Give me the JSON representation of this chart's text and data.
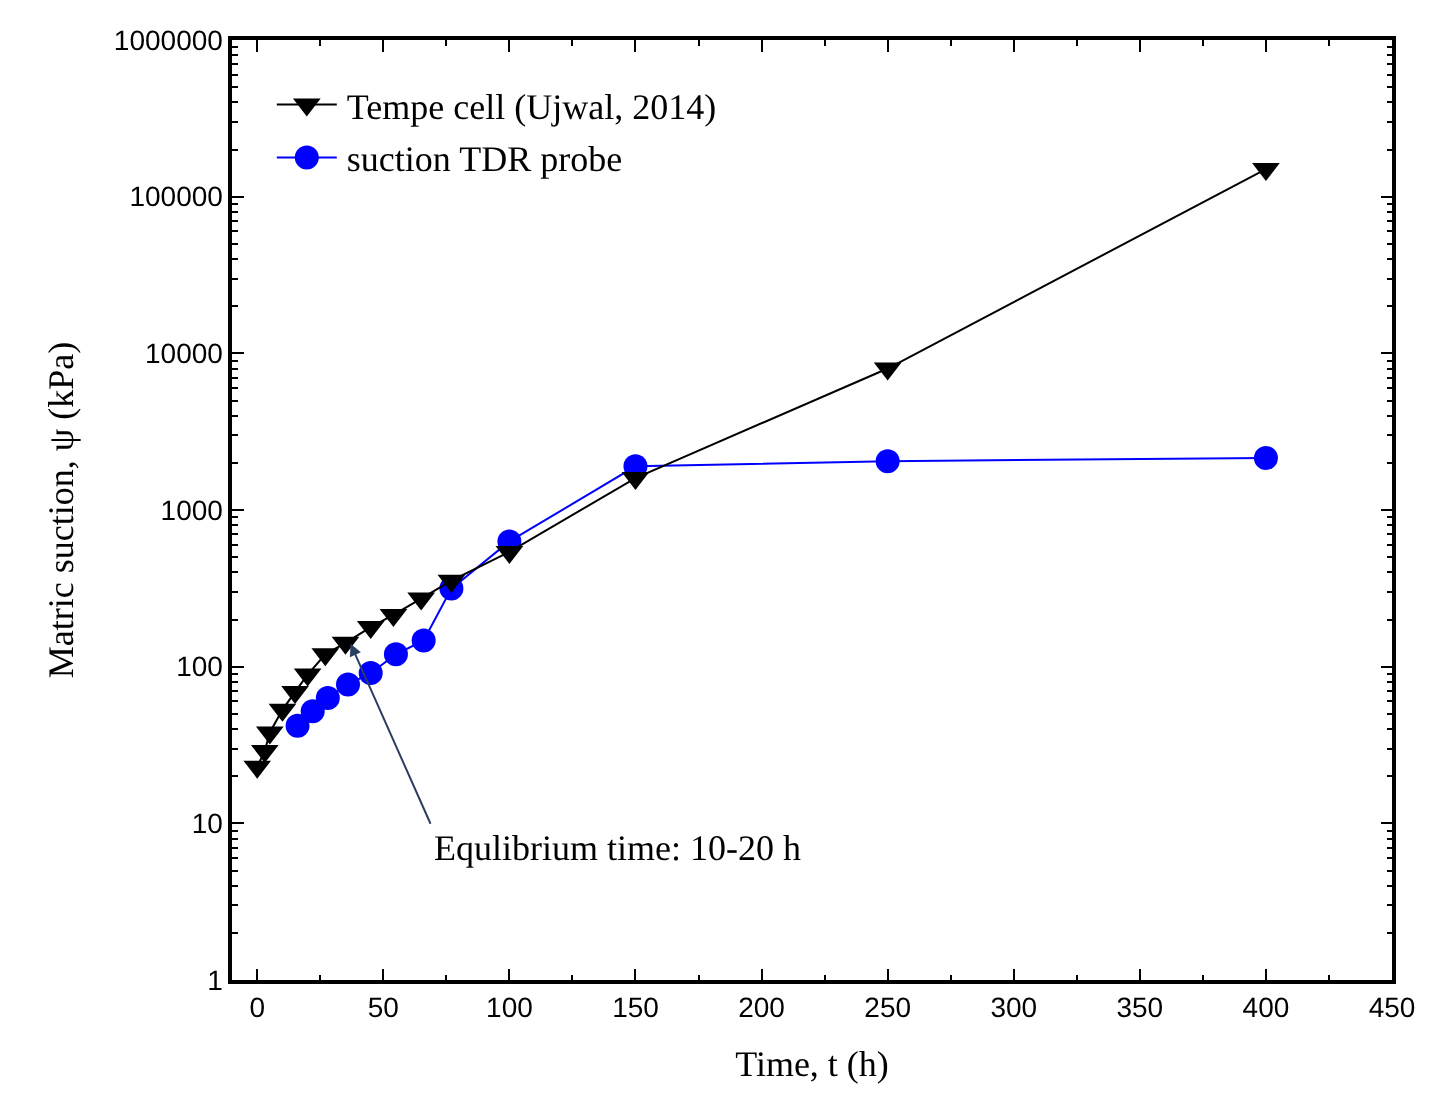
{
  "chart_data": {
    "type": "line",
    "xlabel": "Time, t (h)",
    "ylabel": "Matric suction, ψ (kPa)",
    "xlim": [
      -10,
      450
    ],
    "xticks": [
      0,
      50,
      100,
      150,
      200,
      250,
      300,
      350,
      400,
      450
    ],
    "ylim": [
      1,
      1000000
    ],
    "yticks": [
      1,
      10,
      100,
      1000,
      10000,
      100000,
      1000000
    ],
    "log": true,
    "legend": "top left",
    "series": [
      {
        "name": "Tempe cell (Ujwal, 2014)",
        "color": "#000000",
        "marker": "triangle",
        "x": [
          0,
          3,
          5,
          10,
          15,
          20,
          27,
          35,
          45,
          54,
          65,
          77,
          100,
          150,
          250,
          400
        ],
        "values": [
          23,
          29,
          38,
          53,
          69,
          89,
          120,
          142,
          179,
          214,
          272,
          354,
          540,
          1600,
          8000,
          150000
        ]
      },
      {
        "name": "suction TDR probe",
        "color": "#0000ff",
        "marker": "circle",
        "x": [
          16,
          22,
          28,
          36,
          45,
          55,
          66,
          77,
          100,
          150,
          250,
          400
        ],
        "values": [
          42,
          52,
          63,
          77,
          91,
          120,
          147,
          315,
          630,
          1900,
          2050,
          2150
        ]
      }
    ],
    "annotations": [
      {
        "text": "Equlibrium time: 10-20 h",
        "x": 37,
        "y": 140
      }
    ]
  }
}
